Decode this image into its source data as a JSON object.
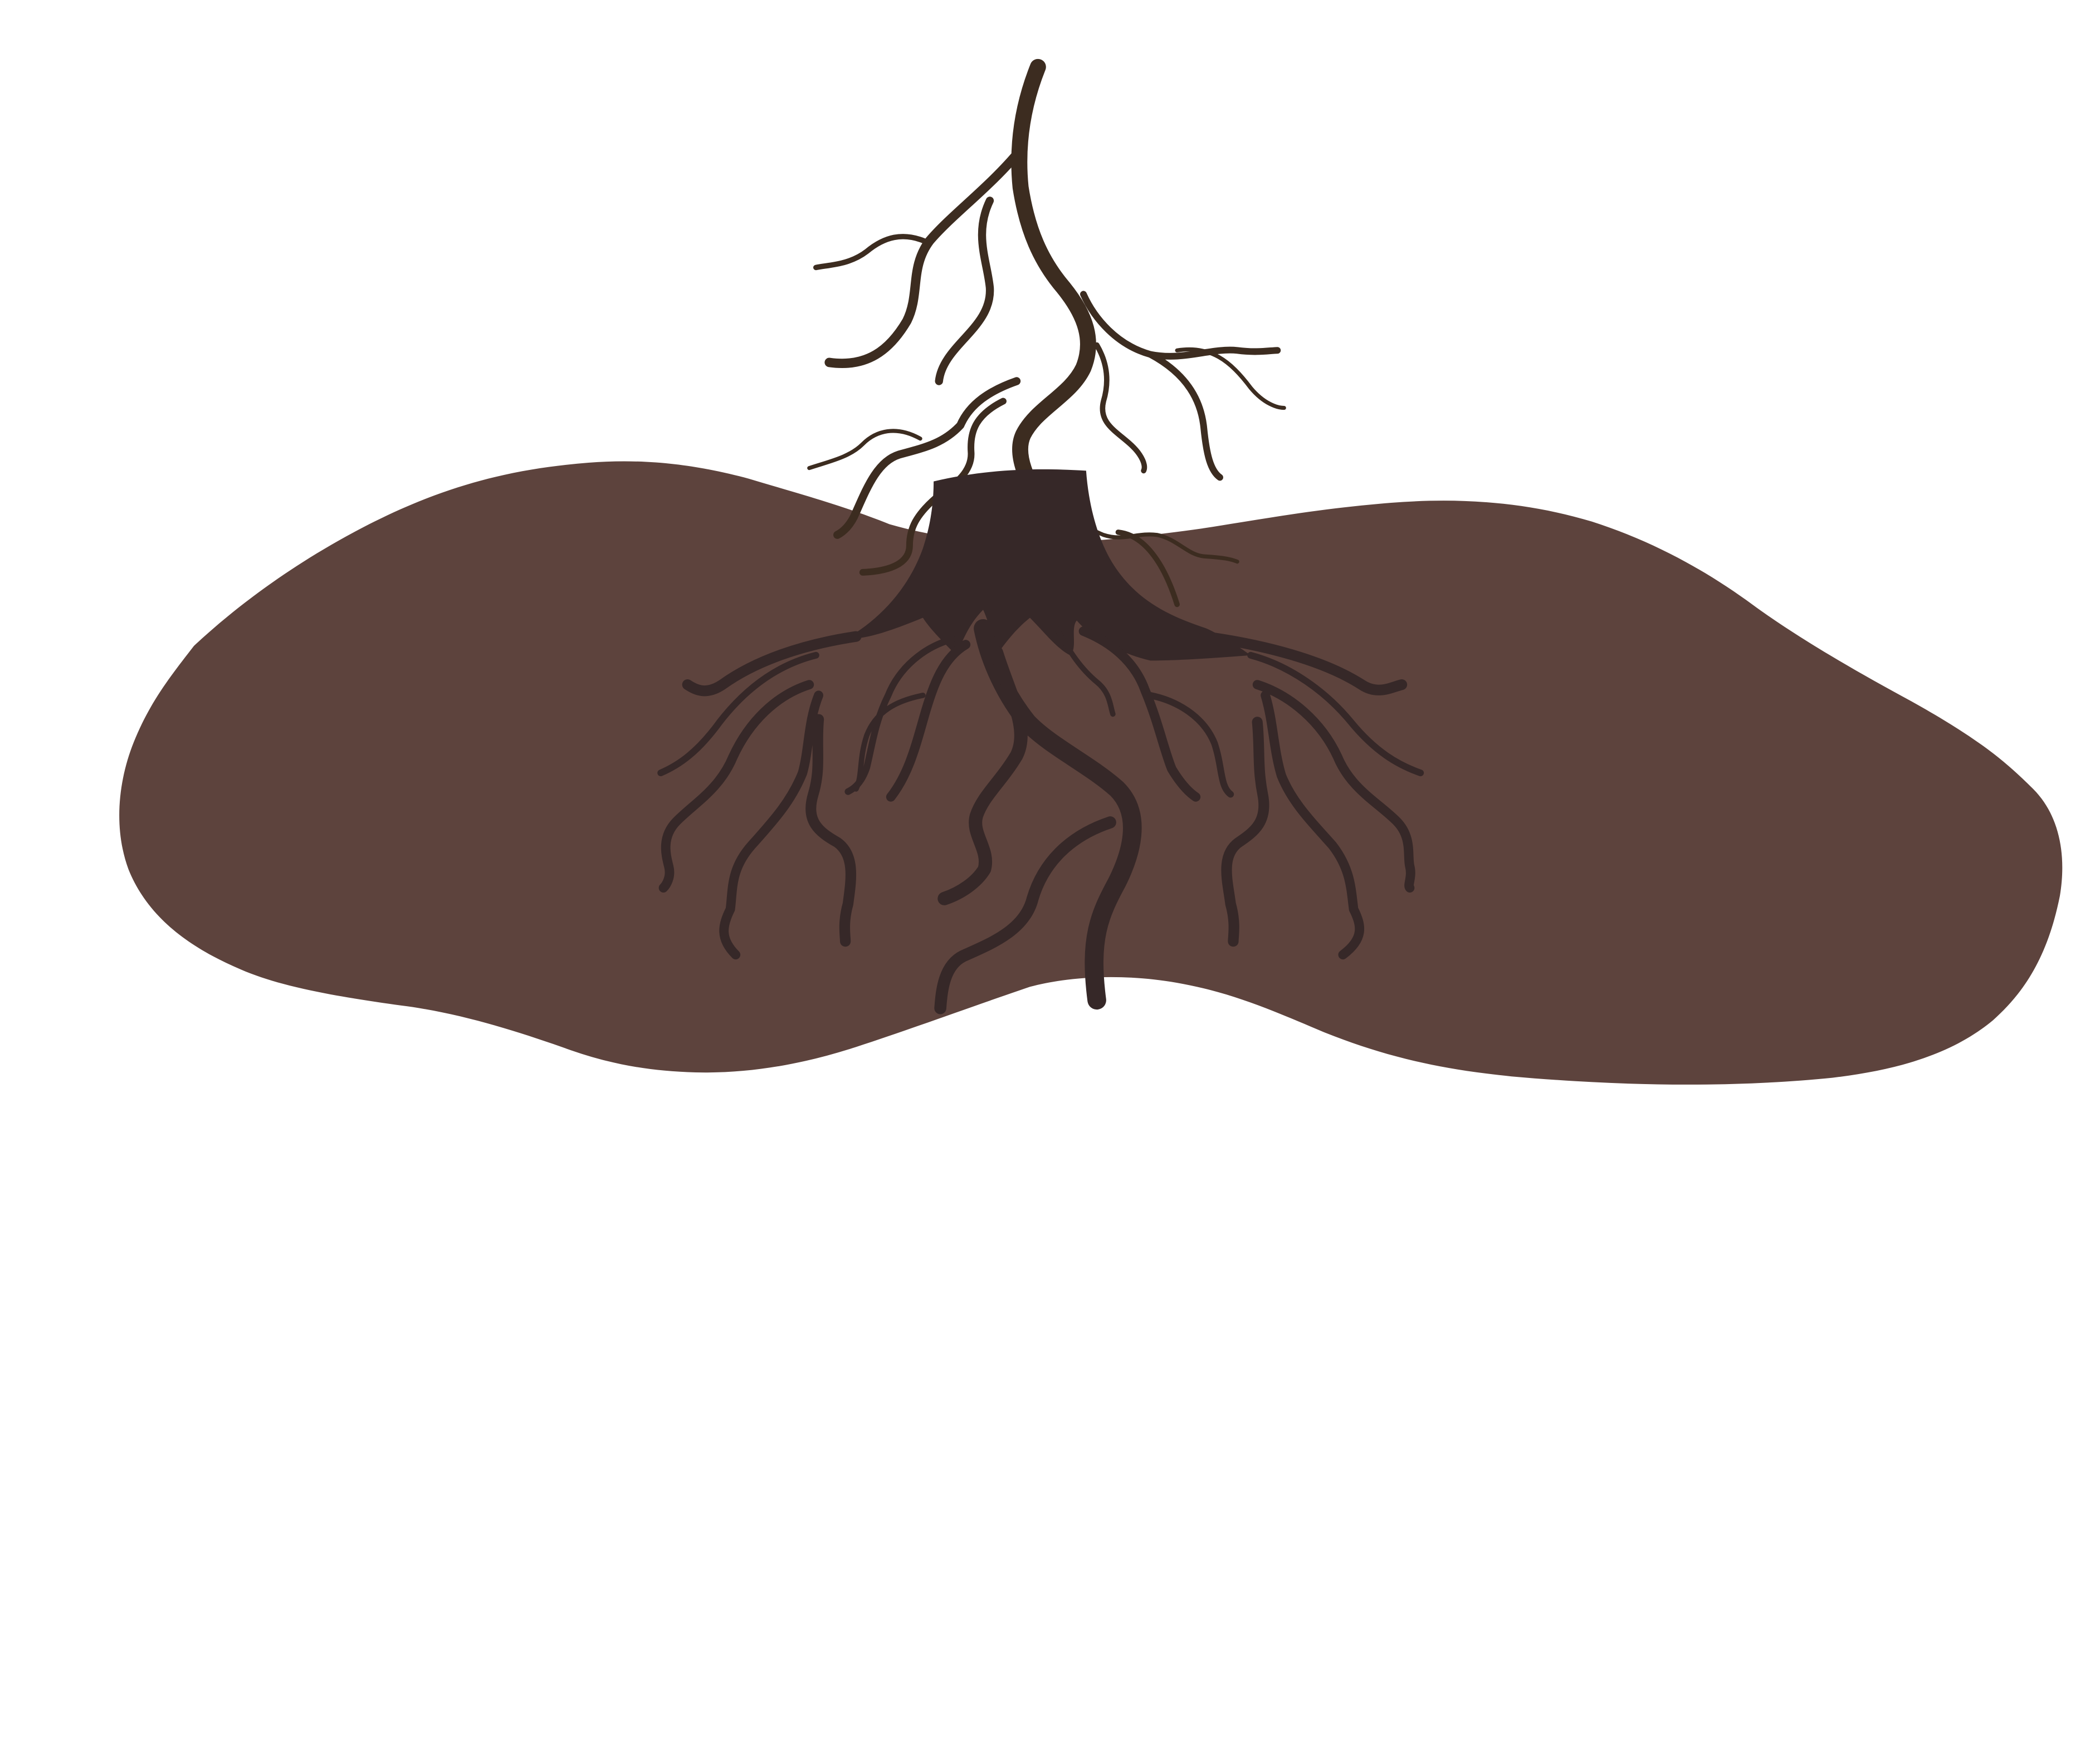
{
  "scene": {
    "background_color": "#ffffff",
    "soil_color": "#5d433d",
    "stump_color": "#362828",
    "upper_root_color": "#3c2c20"
  },
  "elements": [
    {
      "name": "soil-mound",
      "icon": "soil-blob"
    },
    {
      "name": "tree-stump",
      "icon": "stump-silhouette"
    },
    {
      "name": "upper-root-system",
      "icon": "branching-root"
    },
    {
      "name": "lower-root-system",
      "icon": "spreading-roots"
    }
  ]
}
